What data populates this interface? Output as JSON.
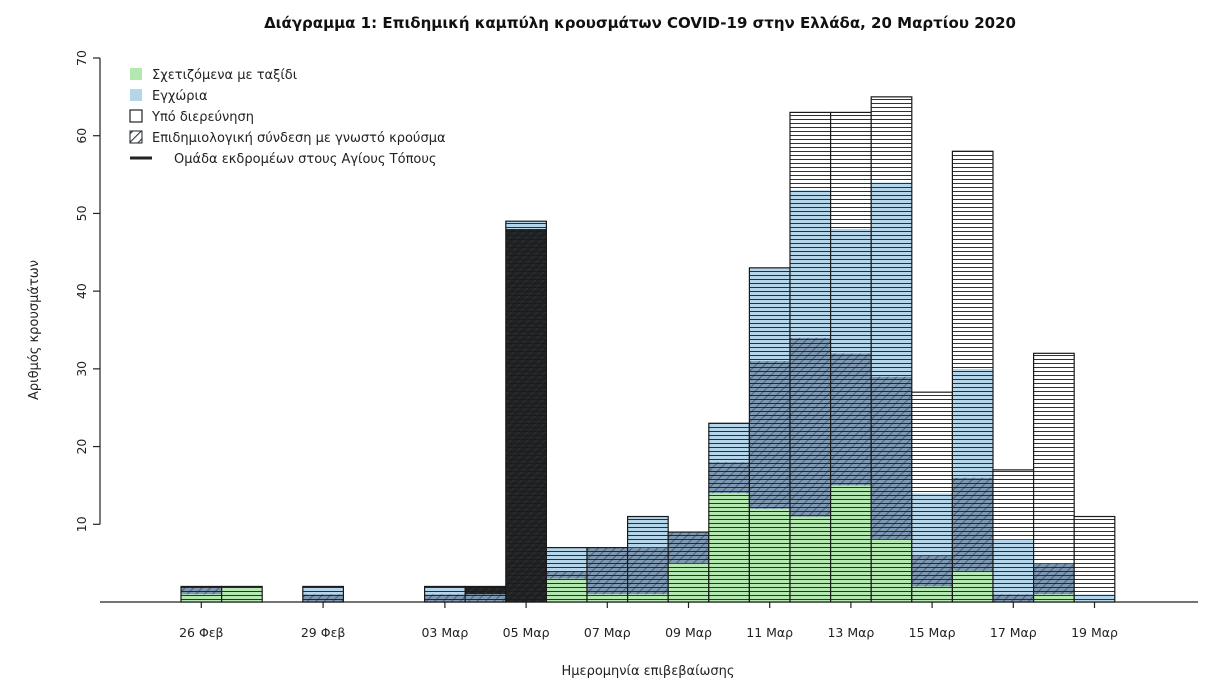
{
  "chart_data": {
    "type": "bar",
    "stacked": true,
    "title": "Διάγραμμα 1: Επιδημική καμπύλη κρουσμάτων COVID-19 στην Ελλάδα, 20 Μαρτίου 2020",
    "xlabel": "Ημερομηνία επιβεβαίωσης",
    "ylabel": "Αριθμός κρουσμάτων",
    "ylim": [
      0,
      70
    ],
    "yticks": [
      10,
      20,
      30,
      40,
      50,
      60,
      70
    ],
    "dates": [
      "26 Φεβ",
      "27 Φεβ",
      "28 Φεβ",
      "29 Φεβ",
      "01 Μαρ",
      "02 Μαρ",
      "03 Μαρ",
      "04 Μαρ",
      "05 Μαρ",
      "06 Μαρ",
      "07 Μαρ",
      "08 Μαρ",
      "09 Μαρ",
      "10 Μαρ",
      "11 Μαρ",
      "12 Μαρ",
      "13 Μαρ",
      "14 Μαρ",
      "15 Μαρ",
      "16 Μαρ",
      "17 Μαρ",
      "18 Μαρ",
      "19 Μαρ",
      "20 Μαρ"
    ],
    "tick_labels": [
      {
        "index": 0,
        "label": "26 Φεβ"
      },
      {
        "index": 3,
        "label": "29 Φεβ"
      },
      {
        "index": 6,
        "label": "03 Μαρ"
      },
      {
        "index": 8,
        "label": "05 Μαρ"
      },
      {
        "index": 10,
        "label": "07 Μαρ"
      },
      {
        "index": 12,
        "label": "09 Μαρ"
      },
      {
        "index": 14,
        "label": "11 Μαρ"
      },
      {
        "index": 16,
        "label": "13 Μαρ"
      },
      {
        "index": 18,
        "label": "15 Μαρ"
      },
      {
        "index": 20,
        "label": "17 Μαρ"
      },
      {
        "index": 22,
        "label": "19 Μαρ"
      }
    ],
    "series": [
      {
        "name": "Σχετιζόμενα με ταξίδι",
        "color": "#b3e8b0",
        "key": "travel",
        "values": [
          1,
          2,
          0,
          0,
          0,
          0,
          0,
          0,
          0,
          3,
          1,
          1,
          5,
          14,
          12,
          11,
          15,
          8,
          2,
          4,
          0,
          1,
          0,
          0
        ]
      },
      {
        "name": "Επιδημιολογική σύνδεση με γνωστό κρούσμα",
        "color": "#7f99b3",
        "key": "linked",
        "values": [
          1,
          0,
          0,
          1,
          0,
          0,
          1,
          1,
          0,
          1,
          6,
          6,
          4,
          4,
          19,
          23,
          17,
          21,
          4,
          12,
          1,
          4,
          0,
          0
        ]
      },
      {
        "name": "Ομάδα εκδρομέων στους Αγίους Τόπους",
        "color": "#222222",
        "key": "pilgrims",
        "values": [
          0,
          0,
          0,
          0,
          0,
          0,
          0,
          1,
          48,
          0,
          0,
          0,
          0,
          0,
          0,
          0,
          0,
          0,
          0,
          0,
          0,
          0,
          0,
          0
        ]
      },
      {
        "name": "Εγχώρια",
        "color": "#b5d6ea",
        "key": "local",
        "values": [
          0,
          0,
          0,
          1,
          0,
          0,
          1,
          0,
          1,
          3,
          0,
          4,
          0,
          5,
          12,
          19,
          16,
          25,
          8,
          14,
          7,
          0,
          1,
          0
        ]
      },
      {
        "name": "Υπό διερεύνηση",
        "color": "#ffffff",
        "key": "investigating",
        "values": [
          0,
          0,
          0,
          0,
          0,
          0,
          0,
          0,
          0,
          0,
          0,
          0,
          0,
          0,
          0,
          10,
          15,
          11,
          13,
          28,
          9,
          27,
          10,
          0
        ]
      }
    ],
    "legend": {
      "placement": "top-left",
      "items": [
        {
          "label": "Σχετιζόμενα με ταξίδι",
          "swatch": "fill",
          "color": "#b3e8b0"
        },
        {
          "label": "Εγχώρια",
          "swatch": "fill",
          "color": "#b5d6ea"
        },
        {
          "label": "Υπό διερεύνηση",
          "swatch": "outline",
          "color": "#ffffff"
        },
        {
          "label": "Επιδημιολογική σύνδεση με γνωστό κρούσμα",
          "swatch": "hatch",
          "color": "#7f99b3"
        },
        {
          "label": "Ομάδα εκδρομέων στους Αγίους Τόπους",
          "swatch": "line",
          "color": "#222222"
        }
      ]
    },
    "grid": false
  }
}
